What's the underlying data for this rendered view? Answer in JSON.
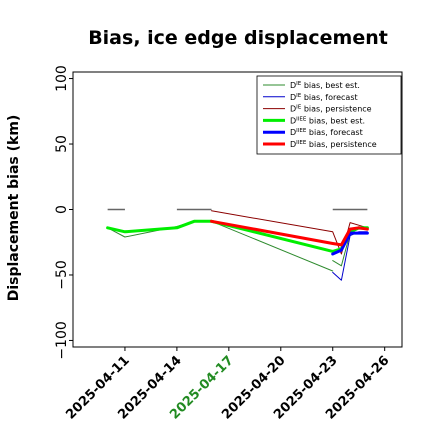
{
  "chart_data": {
    "type": "line",
    "title": "Bias, ice edge displacement",
    "xlabel": "",
    "ylabel": "Displacement bias (km)",
    "ylim": [
      -105,
      105
    ],
    "xlim": [
      "2025-04-08",
      "2025-04-27"
    ],
    "yticks": [
      "−100",
      "−50",
      "0",
      "50",
      "100"
    ],
    "xticks": [
      "2025-04-11",
      "2025-04-14",
      "2025-04-17",
      "2025-04-20",
      "2025-04-23",
      "2025-04-26"
    ],
    "highlighted_xtick": "2025-04-17",
    "highlight_color": "#228b22",
    "grid": false,
    "legend_position": "top-right",
    "reference_segments": [
      {
        "x": [
          "2025-04-10",
          "2025-04-11"
        ],
        "y": [
          0,
          0
        ]
      },
      {
        "x": [
          "2025-04-14",
          "2025-04-16"
        ],
        "y": [
          0,
          0
        ]
      },
      {
        "x": [
          "2025-04-23",
          "2025-04-25"
        ],
        "y": [
          0,
          0
        ]
      }
    ],
    "series": [
      {
        "name": "D^IE bias, best est.",
        "color": "#2e8b2e",
        "width": 1,
        "segments": [
          {
            "x": [
              "2025-04-10",
              "2025-04-11",
              "2025-04-14",
              "2025-04-15",
              "2025-04-16",
              "2025-04-23"
            ],
            "y": [
              -14,
              -21,
              -13,
              -9,
              -9,
              -47
            ]
          },
          {
            "x": [
              "2025-04-23",
              "2025-04-23.5",
              "2025-04-24",
              "2025-04-24.5",
              "2025-04-25"
            ],
            "y": [
              -39,
              -43,
              -18,
              -15,
              -15
            ]
          }
        ]
      },
      {
        "name": "D^IE bias, forecast",
        "color": "#0000cc",
        "width": 1,
        "segments": [
          {
            "x": [
              "2025-04-23",
              "2025-04-23.5",
              "2025-04-24",
              "2025-04-24.5",
              "2025-04-25"
            ],
            "y": [
              -48,
              -54,
              -20,
              -17,
              -17
            ]
          }
        ]
      },
      {
        "name": "D^IE bias, persistence",
        "color": "#8b0000",
        "width": 1,
        "segments": [
          {
            "x": [
              "2025-04-16",
              "2025-04-23",
              "2025-04-23.5",
              "2025-04-24",
              "2025-04-24.5",
              "2025-04-25"
            ],
            "y": [
              -1,
              -17,
              -34,
              -10,
              -12,
              -14
            ]
          }
        ]
      },
      {
        "name": "D^IIEE bias, best est.",
        "color": "#00ee00",
        "width": 3,
        "segments": [
          {
            "x": [
              "2025-04-10",
              "2025-04-11",
              "2025-04-14",
              "2025-04-15",
              "2025-04-16",
              "2025-04-23",
              "2025-04-23.5",
              "2025-04-24",
              "2025-04-24.5",
              "2025-04-25"
            ],
            "y": [
              -14,
              -17,
              -14,
              -9,
              -9,
              -32,
              -30,
              -17,
              -14,
              -14
            ]
          }
        ]
      },
      {
        "name": "D^IIEE bias, forecast",
        "color": "#0000ff",
        "width": 3,
        "segments": [
          {
            "x": [
              "2025-04-23",
              "2025-04-23.5",
              "2025-04-24",
              "2025-04-24.5",
              "2025-04-25"
            ],
            "y": [
              -34,
              -31,
              -18,
              -18,
              -18
            ]
          }
        ]
      },
      {
        "name": "D^IIEE bias, persistence",
        "color": "#ff0000",
        "width": 3,
        "segments": [
          {
            "x": [
              "2025-04-16",
              "2025-04-23",
              "2025-04-23.5",
              "2025-04-24",
              "2025-04-24.5",
              "2025-04-25"
            ],
            "y": [
              -9,
              -26,
              -27,
              -15,
              -14,
              -15
            ]
          }
        ]
      }
    ],
    "legend": [
      {
        "base": "D",
        "sup": "IE",
        "label": " bias, best est.",
        "color": "#2e8b2e",
        "width": 1
      },
      {
        "base": "D",
        "sup": "IE",
        "label": " bias, forecast",
        "color": "#0000cc",
        "width": 1
      },
      {
        "base": "D",
        "sup": "IE",
        "label": " bias, persistence",
        "color": "#8b0000",
        "width": 1
      },
      {
        "base": "D",
        "sup": "IIEE",
        "label": " bias, best est.",
        "color": "#00ee00",
        "width": 3
      },
      {
        "base": "D",
        "sup": "IIEE",
        "label": " bias, forecast",
        "color": "#0000ff",
        "width": 3
      },
      {
        "base": "D",
        "sup": "IIEE",
        "label": " bias, persistence",
        "color": "#ff0000",
        "width": 3
      }
    ]
  }
}
